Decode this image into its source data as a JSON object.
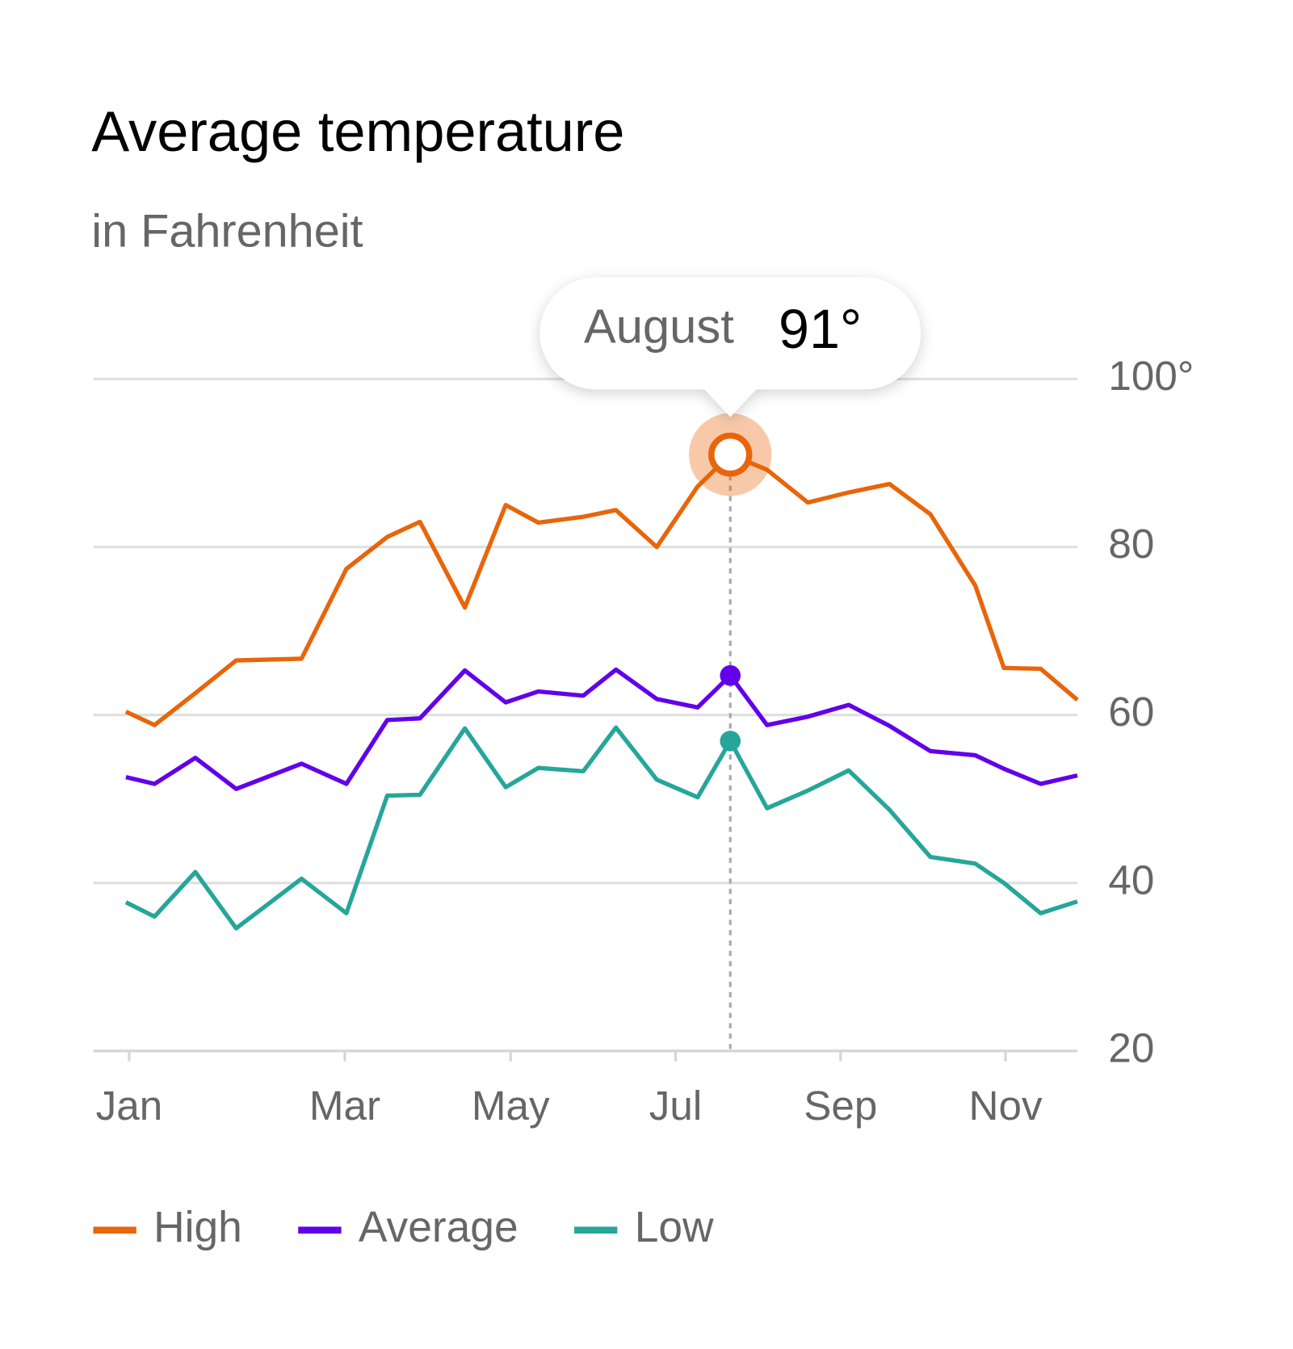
{
  "chart_data": {
    "type": "line",
    "title": "Average temperature",
    "subtitle": "in Fahrenheit",
    "x": [
      0.4,
      0.75,
      1.25,
      1.75,
      2.55,
      3.1,
      3.6,
      4.0,
      4.55,
      5.05,
      5.45,
      6.0,
      6.4,
      6.9,
      7.4,
      7.8,
      8.25,
      8.75,
      9.25,
      9.75,
      10.25,
      10.8,
      11.15,
      11.6,
      12.05
    ],
    "series": [
      {
        "name": "High",
        "color": "#e8650a",
        "values": [
          60.4,
          58.8,
          62.6,
          66.5,
          66.7,
          77.4,
          81.2,
          83,
          72.8,
          85,
          82.9,
          83.6,
          84.4,
          80,
          87.2,
          91,
          89.2,
          85.3,
          86.5,
          87.5,
          83.9,
          75.4,
          65.6,
          65.5,
          61.8
        ]
      },
      {
        "name": "Average",
        "color": "#6200ea",
        "values": [
          52.6,
          51.8,
          54.9,
          51.2,
          54.2,
          51.8,
          59.4,
          59.6,
          65.3,
          61.5,
          62.8,
          62.3,
          65.4,
          61.9,
          60.9,
          64.7,
          58.8,
          59.8,
          61.2,
          58.7,
          55.7,
          55.2,
          53.6,
          51.8,
          52.8
        ]
      },
      {
        "name": "Low",
        "color": "#26a69a",
        "values": [
          37.7,
          36,
          41.3,
          34.6,
          40.5,
          36.4,
          50.4,
          50.5,
          58.4,
          51.4,
          53.7,
          53.3,
          58.5,
          52.3,
          50.2,
          56.9,
          48.9,
          51,
          53.4,
          48.7,
          43.1,
          42.3,
          40,
          36.4,
          37.8
        ]
      }
    ],
    "xlim": [
      0,
      12.05
    ],
    "xticks": [
      {
        "value": 0.44,
        "label": "Jan"
      },
      {
        "value": 3.08,
        "label": "Mar"
      },
      {
        "value": 5.11,
        "label": "May"
      },
      {
        "value": 7.13,
        "label": "Jul"
      },
      {
        "value": 9.15,
        "label": "Sep"
      },
      {
        "value": 11.17,
        "label": "Nov"
      }
    ],
    "ylim": [
      20,
      100
    ],
    "yticks": [
      20,
      40,
      60,
      {
        "value": 100,
        "label": "100°"
      },
      80
    ],
    "grid": true,
    "highlight_index": 15,
    "tooltip": {
      "label": "August",
      "text": "91°"
    }
  }
}
